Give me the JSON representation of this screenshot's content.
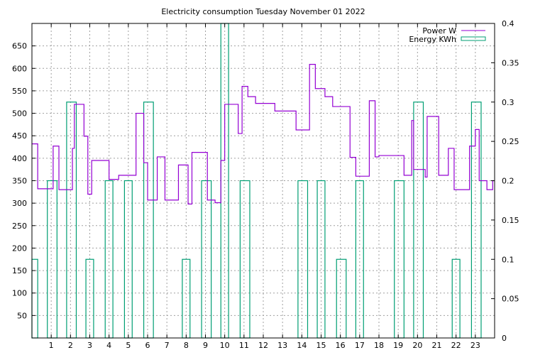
{
  "chart_data": {
    "type": "line",
    "title": "Electricity consumption Tuesday November 01 2022",
    "xlabel": "",
    "ylabel": "",
    "y2label": "",
    "xlim": [
      0,
      24
    ],
    "ylim": [
      0,
      700
    ],
    "y2lim": [
      0,
      0.4
    ],
    "grid": true,
    "legend_position": "top-right",
    "x_ticks": [
      1,
      2,
      3,
      4,
      5,
      6,
      7,
      8,
      9,
      10,
      11,
      12,
      13,
      14,
      15,
      16,
      17,
      18,
      19,
      20,
      21,
      22,
      23
    ],
    "y_ticks": [
      50,
      100,
      150,
      200,
      250,
      300,
      350,
      400,
      450,
      500,
      550,
      600,
      650
    ],
    "y2_ticks": [
      0,
      0.05,
      0.1,
      0.15,
      0.2,
      0.25,
      0.3,
      0.35,
      0.4
    ],
    "series": [
      {
        "name": "Power W",
        "axis": "left",
        "color": "#9400d3",
        "style": "steps",
        "points": [
          [
            0.0,
            432
          ],
          [
            0.3,
            332
          ],
          [
            1.1,
            427
          ],
          [
            1.4,
            330
          ],
          [
            2.1,
            422
          ],
          [
            2.2,
            520
          ],
          [
            2.7,
            449
          ],
          [
            2.9,
            320
          ],
          [
            3.1,
            395
          ],
          [
            4.0,
            353
          ],
          [
            4.5,
            362
          ],
          [
            5.4,
            500
          ],
          [
            5.8,
            390
          ],
          [
            6.0,
            307
          ],
          [
            6.5,
            403
          ],
          [
            6.9,
            307
          ],
          [
            7.6,
            385
          ],
          [
            8.1,
            298
          ],
          [
            8.3,
            413
          ],
          [
            9.1,
            307
          ],
          [
            9.5,
            301
          ],
          [
            9.8,
            395
          ],
          [
            10.0,
            520
          ],
          [
            10.7,
            455
          ],
          [
            10.9,
            560
          ],
          [
            11.2,
            537
          ],
          [
            11.6,
            522
          ],
          [
            12.6,
            505
          ],
          [
            13.7,
            463
          ],
          [
            14.4,
            609
          ],
          [
            14.7,
            555
          ],
          [
            15.2,
            537
          ],
          [
            15.6,
            515
          ],
          [
            16.5,
            402
          ],
          [
            16.8,
            360
          ],
          [
            17.5,
            528
          ],
          [
            17.8,
            403
          ],
          [
            18.0,
            406
          ],
          [
            19.3,
            362
          ],
          [
            19.7,
            484
          ],
          [
            19.8,
            375
          ],
          [
            20.4,
            358
          ],
          [
            20.5,
            493
          ],
          [
            21.1,
            362
          ],
          [
            21.6,
            422
          ],
          [
            21.9,
            330
          ],
          [
            22.7,
            427
          ],
          [
            23.0,
            464
          ],
          [
            23.2,
            350
          ],
          [
            23.6,
            330
          ],
          [
            23.9,
            350
          ]
        ]
      },
      {
        "name": "Energy KWh",
        "axis": "right",
        "color": "#009e73",
        "style": "bars",
        "bars": [
          {
            "x0": 0.0,
            "x1": 0.3,
            "value": 0.1
          },
          {
            "x0": 0.8,
            "x1": 1.3,
            "value": 0.2
          },
          {
            "x0": 1.8,
            "x1": 2.3,
            "value": 0.3
          },
          {
            "x0": 2.8,
            "x1": 3.2,
            "value": 0.1
          },
          {
            "x0": 3.8,
            "x1": 4.2,
            "value": 0.2
          },
          {
            "x0": 4.8,
            "x1": 5.2,
            "value": 0.2
          },
          {
            "x0": 5.8,
            "x1": 6.3,
            "value": 0.3
          },
          {
            "x0": 7.8,
            "x1": 8.2,
            "value": 0.1
          },
          {
            "x0": 8.8,
            "x1": 9.3,
            "value": 0.2
          },
          {
            "x0": 9.8,
            "x1": 10.2,
            "value": 0.4
          },
          {
            "x0": 10.8,
            "x1": 11.3,
            "value": 0.2
          },
          {
            "x0": 13.8,
            "x1": 14.3,
            "value": 0.2
          },
          {
            "x0": 14.8,
            "x1": 15.2,
            "value": 0.2
          },
          {
            "x0": 15.8,
            "x1": 16.3,
            "value": 0.1
          },
          {
            "x0": 16.8,
            "x1": 17.2,
            "value": 0.2
          },
          {
            "x0": 18.8,
            "x1": 19.3,
            "value": 0.2
          },
          {
            "x0": 19.8,
            "x1": 20.3,
            "value": 0.3
          },
          {
            "x0": 21.8,
            "x1": 22.2,
            "value": 0.1
          },
          {
            "x0": 22.8,
            "x1": 23.3,
            "value": 0.3
          }
        ]
      }
    ]
  }
}
